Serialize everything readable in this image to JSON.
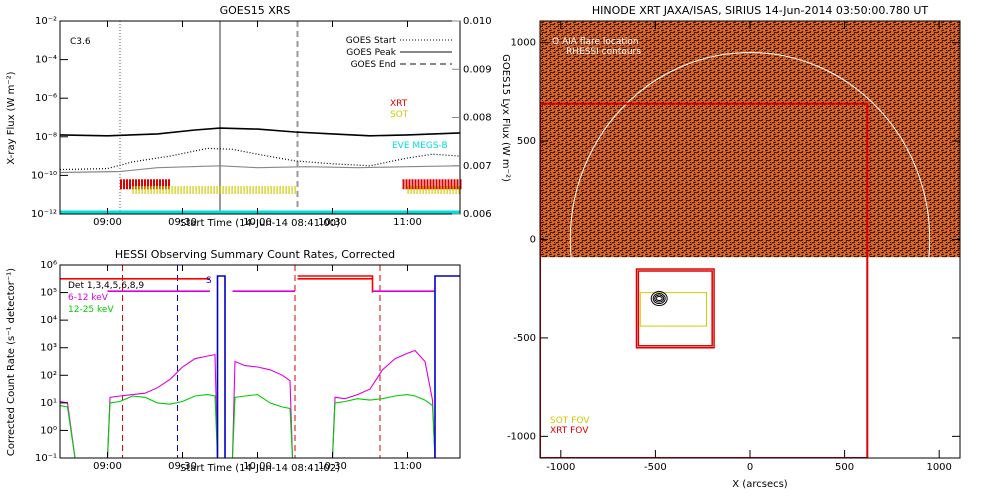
{
  "chart_data": [
    {
      "type": "line",
      "title": "GOES15 XRS",
      "xlabel": "Start Time (14-Jun-14 08:41:00)",
      "ylabel": "X-ray Flux (W m⁻²)",
      "ylabel_right": "GOES15 Lyx Flux (W m⁻²)",
      "x_ticks": [
        "09:00",
        "09:30",
        "10:00",
        "10:30",
        "11:00"
      ],
      "x_tick_minutes": [
        540,
        570,
        600,
        630,
        660
      ],
      "xlim_minutes": [
        521,
        681
      ],
      "y_ticks": [
        "10⁻¹²",
        "10⁻¹⁰",
        "10⁻⁸",
        "10⁻⁶",
        "10⁻⁴",
        "10⁻²"
      ],
      "y_tick_exponents": [
        -12,
        -10,
        -8,
        -6,
        -4,
        -2
      ],
      "ylim_exponent": [
        -12,
        -2
      ],
      "y_right_ticks": [
        "0.006",
        "0.007",
        "0.008",
        "0.009",
        "0.010"
      ],
      "y_right_values": [
        0.006,
        0.007,
        0.008,
        0.009,
        0.01
      ],
      "flare_class": "C3.6",
      "legend": [
        {
          "name": "GOES Start",
          "style": "dotted"
        },
        {
          "name": "GOES Peak",
          "style": "solid"
        },
        {
          "name": "GOES End",
          "style": "dashed"
        }
      ],
      "event_lines_minutes": {
        "start": 545,
        "peak": 585,
        "end": 616
      },
      "markers": [
        {
          "label": "XRT",
          "color": "#dd0000"
        },
        {
          "label": "SOT",
          "color": "#cccc00"
        },
        {
          "label": "EVE MEGS-B",
          "color": "#00dddd"
        }
      ],
      "xrt_intervals_minutes": [
        [
          545,
          565
        ],
        [
          658,
          681
        ]
      ],
      "sot_intervals_minutes": [
        [
          550,
          616
        ],
        [
          660,
          681
        ]
      ],
      "series": [
        {
          "name": "Long channel",
          "color": "#000000",
          "points": [
            [
              521,
              -7.9
            ],
            [
              540,
              -7.95
            ],
            [
              560,
              -7.85
            ],
            [
              575,
              -7.65
            ],
            [
              585,
              -7.55
            ],
            [
              600,
              -7.6
            ],
            [
              615,
              -7.75
            ],
            [
              630,
              -7.85
            ],
            [
              645,
              -7.95
            ],
            [
              660,
              -7.9
            ],
            [
              681,
              -7.8
            ]
          ]
        },
        {
          "name": "Short channel",
          "color": "#000000",
          "style": "dotted",
          "points": [
            [
              521,
              -9.7
            ],
            [
              540,
              -9.65
            ],
            [
              550,
              -9.3
            ],
            [
              565,
              -9.0
            ],
            [
              580,
              -8.6
            ],
            [
              590,
              -8.65
            ],
            [
              600,
              -8.9
            ],
            [
              615,
              -9.25
            ],
            [
              630,
              -9.4
            ],
            [
              645,
              -9.5
            ],
            [
              660,
              -9.1
            ],
            [
              670,
              -8.9
            ],
            [
              681,
              -9.0
            ]
          ]
        },
        {
          "name": "Lyx",
          "color": "#888888",
          "points": [
            [
              521,
              -9.85
            ],
            [
              545,
              -9.8
            ],
            [
              560,
              -9.6
            ],
            [
              585,
              -9.5
            ],
            [
              600,
              -9.6
            ],
            [
              620,
              -9.55
            ],
            [
              640,
              -9.6
            ],
            [
              660,
              -9.55
            ],
            [
              681,
              -9.5
            ]
          ]
        }
      ]
    },
    {
      "type": "line",
      "title": "HESSI Observing Summary Count Rates, Corrected",
      "xlabel": "Start Time (14-Jun-14 08:41:02)",
      "ylabel": "Corrected Count Rate (s⁻¹ detector⁻¹)",
      "x_ticks": [
        "09:00",
        "09:30",
        "10:00",
        "10:30",
        "11:00"
      ],
      "x_tick_minutes": [
        540,
        570,
        600,
        630,
        660
      ],
      "xlim_minutes": [
        521,
        681
      ],
      "y_ticks": [
        "10⁻¹",
        "10⁰",
        "10¹",
        "10²",
        "10³",
        "10⁴",
        "10⁵",
        "10⁶"
      ],
      "y_tick_exponents": [
        -1,
        0,
        1,
        2,
        3,
        4,
        5,
        6
      ],
      "ylim_exponent": [
        -1,
        6
      ],
      "legend": [
        {
          "name": "Det 1,3,4,5,6,8,9",
          "color": "#000000"
        },
        {
          "name": "6-12 keV",
          "color": "#dd00dd"
        },
        {
          "name": "12-25 keV",
          "color": "#00cc00"
        }
      ],
      "saa_label": "S",
      "red_dashed_minutes": [
        546,
        615,
        649
      ],
      "blue_dashed_minutes": [
        568
      ],
      "series": [
        {
          "name": "6-12 keV",
          "color": "#dd00dd",
          "points": [
            [
              521,
              1.05
            ],
            [
              524,
              1.0
            ],
            [
              527,
              -1.0
            ],
            [
              540,
              -1.0
            ],
            [
              541,
              1.2
            ],
            [
              545,
              1.25
            ],
            [
              550,
              1.3
            ],
            [
              555,
              1.35
            ],
            [
              560,
              1.55
            ],
            [
              565,
              1.85
            ],
            [
              570,
              2.3
            ],
            [
              575,
              2.6
            ],
            [
              580,
              2.7
            ],
            [
              583,
              2.75
            ],
            [
              584,
              -1.0
            ],
            [
              590,
              -1.0
            ],
            [
              591,
              2.5
            ],
            [
              595,
              2.35
            ],
            [
              600,
              2.3
            ],
            [
              605,
              2.2
            ],
            [
              610,
              2.0
            ],
            [
              613,
              1.8
            ],
            [
              614,
              -1.0
            ],
            [
              630,
              -1.0
            ],
            [
              631,
              1.2
            ],
            [
              635,
              1.15
            ],
            [
              640,
              1.3
            ],
            [
              645,
              1.5
            ],
            [
              650,
              2.2
            ],
            [
              655,
              2.6
            ],
            [
              660,
              2.8
            ],
            [
              663,
              2.9
            ],
            [
              667,
              2.5
            ],
            [
              670,
              1.1
            ],
            [
              671,
              -1.0
            ],
            [
              673,
              -1.0
            ]
          ]
        },
        {
          "name": "12-25 keV",
          "color": "#00cc00",
          "points": [
            [
              521,
              0.9
            ],
            [
              524,
              0.85
            ],
            [
              527,
              -1.0
            ],
            [
              540,
              -1.0
            ],
            [
              541,
              1.0
            ],
            [
              545,
              1.05
            ],
            [
              550,
              1.25
            ],
            [
              555,
              1.2
            ],
            [
              560,
              1.0
            ],
            [
              565,
              0.95
            ],
            [
              570,
              1.05
            ],
            [
              575,
              1.25
            ],
            [
              580,
              1.3
            ],
            [
              583,
              1.25
            ],
            [
              584,
              -1.0
            ],
            [
              590,
              -1.0
            ],
            [
              591,
              1.2
            ],
            [
              595,
              1.25
            ],
            [
              600,
              1.3
            ],
            [
              605,
              1.0
            ],
            [
              610,
              0.85
            ],
            [
              613,
              0.8
            ],
            [
              614,
              -1.0
            ],
            [
              630,
              -1.0
            ],
            [
              631,
              1.0
            ],
            [
              635,
              1.05
            ],
            [
              640,
              1.15
            ],
            [
              645,
              1.1
            ],
            [
              650,
              1.15
            ],
            [
              655,
              1.25
            ],
            [
              660,
              1.3
            ],
            [
              663,
              1.25
            ],
            [
              667,
              1.1
            ],
            [
              670,
              0.9
            ],
            [
              671,
              -1.0
            ],
            [
              673,
              -1.0
            ]
          ]
        },
        {
          "name": "Attenuator state",
          "color": "#ff0000",
          "points": [
            [
              521,
              5.5
            ],
            [
              545,
              5.5
            ],
            [
              546,
              5.5
            ],
            [
              581,
              5.5
            ]
          ]
        },
        {
          "name": "Attenuator state 2",
          "color": "#ff0000",
          "points": [
            [
              616,
              5.5
            ],
            [
              646,
              5.5
            ]
          ]
        },
        {
          "name": "Attenuator state 3",
          "color": "#ff0000",
          "points": [
            [
              616,
              5.6
            ],
            [
              646,
              5.6
            ],
            [
              646,
              5.0
            ]
          ]
        },
        {
          "name": "Flag level",
          "color": "#dd00dd",
          "points": [
            [
              540,
              5.05
            ],
            [
              581,
              5.05
            ]
          ]
        },
        {
          "name": "Flag level 2",
          "color": "#dd00dd",
          "points": [
            [
              590,
              5.05
            ],
            [
              615,
              5.05
            ]
          ]
        },
        {
          "name": "Flag level 3",
          "color": "#dd00dd",
          "points": [
            [
              646,
              5.05
            ],
            [
              671,
              5.05
            ]
          ]
        },
        {
          "name": "SAA/Night",
          "color": "#0000cc",
          "points": [
            [
              584,
              -1.0
            ],
            [
              584,
              5.6
            ],
            [
              587,
              5.6
            ],
            [
              587,
              -1.0
            ]
          ]
        },
        {
          "name": "SAA/Night 2",
          "color": "#0000cc",
          "points": [
            [
              671,
              -1.0
            ],
            [
              671,
              5.6
            ],
            [
              681,
              5.6
            ]
          ]
        }
      ]
    },
    {
      "type": "scatter",
      "title": "HINODE XRT JAXA/ISAS, SIRIUS 14-Jun-2014 03:50:00.780 UT",
      "xlabel": "X (arcsecs)",
      "ylabel": "Y (arcsecs)",
      "x_ticks": [
        "-1000",
        "-500",
        "0",
        "500",
        "1000"
      ],
      "x_tick_values": [
        -1000,
        -500,
        0,
        500,
        1000
      ],
      "y_ticks": [
        "-1000",
        "-500",
        "0",
        "500",
        "1000"
      ],
      "y_tick_values": [
        -1000,
        -500,
        0,
        500,
        1000
      ],
      "xlim": [
        -1110,
        1110
      ],
      "ylim": [
        -1110,
        1110
      ],
      "legend": [
        {
          "name": "AIA flare location",
          "symbol": "O",
          "color": "#ffffff"
        },
        {
          "name": "RHESSI contours",
          "color": "#ffffff"
        }
      ],
      "fov_labels": [
        {
          "name": "SOT FOV",
          "color": "#cccc00"
        },
        {
          "name": "XRT FOV",
          "color": "#dd0000"
        }
      ],
      "image_extent_arcsec": {
        "x": [
          -1110,
          1110
        ],
        "y": [
          -90,
          1110
        ]
      },
      "solar_limb_radius_arcsec": 950,
      "xrt_fov_arcsec": {
        "x": [
          -1110,
          620
        ],
        "y": [
          -1110,
          690
        ]
      },
      "xrt_fov_small_arcsec": [
        {
          "x": [
            -600,
            -190
          ],
          "y": [
            -550,
            -150
          ]
        },
        {
          "x": [
            -590,
            -200
          ],
          "y": [
            -540,
            -160
          ]
        }
      ],
      "sot_fov_arcsec": {
        "x": [
          -580,
          -230
        ],
        "y": [
          -440,
          -270
        ]
      },
      "rhessi_contour_center_arcsec": [
        -480,
        -300
      ]
    }
  ]
}
